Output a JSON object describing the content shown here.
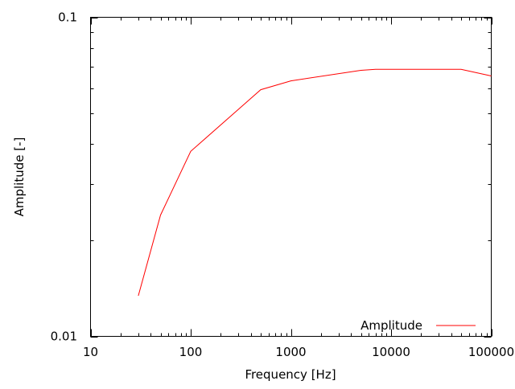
{
  "chart_data": {
    "type": "line",
    "title": "",
    "xlabel": "Frequency [Hz]",
    "ylabel": "Amplitude [-]",
    "xscale": "log",
    "yscale": "log",
    "xlim": [
      10,
      100000
    ],
    "ylim": [
      0.01,
      0.1
    ],
    "xticks": [
      10,
      100,
      1000,
      10000,
      100000
    ],
    "xtick_labels": [
      "10",
      "100",
      "1000",
      "10000",
      "100000"
    ],
    "yticks": [
      0.01,
      0.1
    ],
    "ytick_labels": [
      "0.01",
      "0.1"
    ],
    "grid": false,
    "legend_position": "bottom-right",
    "series": [
      {
        "name": "Amplitude",
        "color": "#ff0000",
        "x": [
          30,
          50,
          100,
          500,
          1000,
          5000,
          7000,
          50000,
          100000
        ],
        "y": [
          0.0134,
          0.024,
          0.038,
          0.0593,
          0.0632,
          0.0682,
          0.0687,
          0.0687,
          0.0655
        ]
      }
    ]
  }
}
